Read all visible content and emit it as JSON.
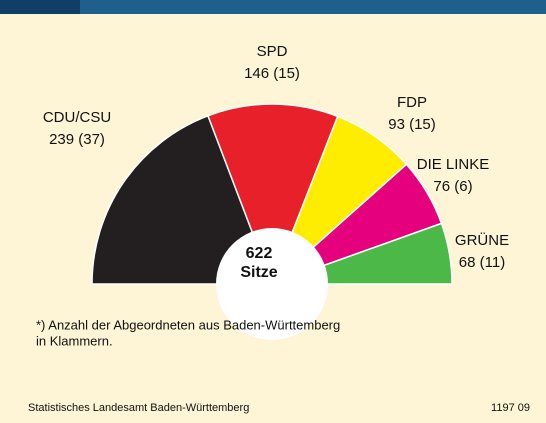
{
  "chart_data": {
    "type": "pie",
    "categories": [
      "CDU/CSU",
      "SPD",
      "FDP",
      "DIE LINKE",
      "GRÜNE"
    ],
    "values": [
      239,
      146,
      93,
      76,
      68
    ],
    "bw_values": [
      37,
      15,
      15,
      6,
      11
    ],
    "value_labels": [
      "239 (37)",
      "146 (15)",
      "93 (15)",
      "76 (6)",
      "68 (11)"
    ],
    "colors": [
      "#231f20",
      "#e8202a",
      "#ffed00",
      "#e5007d",
      "#4cb848"
    ],
    "total": 622,
    "total_label": "Sitze",
    "note": [
      "*) Anzahl der Abgeordneten aus Baden-Württemberg",
      "in Klammern."
    ],
    "source": "Statistisches Landesamt Baden-Württemberg",
    "code": "1197 09"
  }
}
